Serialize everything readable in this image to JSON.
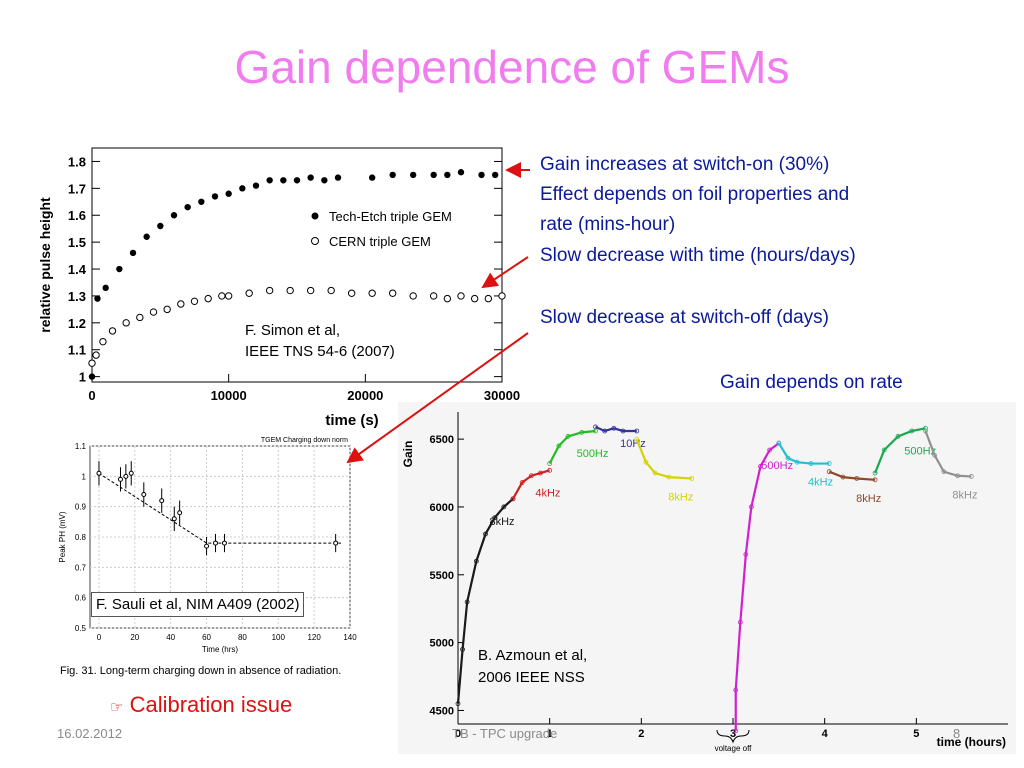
{
  "slide": {
    "title": "Gain dependence of GEMs",
    "bullets": [
      "Gain increases at switch-on (30%)",
      "Effect depends on foil properties and",
      "rate (mins-hour)",
      "Slow decrease with time (hours/days)",
      "Slow decrease at switch-off (days)"
    ],
    "rate_label": "Gain depends on rate",
    "calibration": {
      "glyph": "☞",
      "text": "Calibration issue"
    },
    "footer": {
      "date": "16.02.2012",
      "event": "TB - TPC upgrade",
      "page": "8"
    },
    "colors": {
      "title": "#f07cf0",
      "bullets": "#0a1a99",
      "arrows": "#dd1111",
      "calibration": "#dd1111"
    }
  },
  "chart_data": [
    {
      "id": "simon",
      "type": "scatter",
      "xlabel": "time (s)",
      "ylabel": "relative pulse height",
      "xlim": [
        0,
        30000
      ],
      "ylim": [
        0.98,
        1.85
      ],
      "xticks": [
        "0",
        "10000",
        "20000",
        "30000"
      ],
      "yticks": [
        "1",
        "1.1",
        "1.2",
        "1.3",
        "1.4",
        "1.5",
        "1.6",
        "1.7",
        "1.8"
      ],
      "legend": [
        "Tech-Etch triple GEM",
        "CERN triple GEM"
      ],
      "legend_position": "right",
      "citation": [
        "F. Simon et al,",
        "IEEE TNS 54-6 (2007)"
      ],
      "series": [
        {
          "name": "Tech-Etch triple GEM",
          "marker": "filled-circle",
          "points": [
            [
              0,
              1.0
            ],
            [
              400,
              1.29
            ],
            [
              1000,
              1.33
            ],
            [
              2000,
              1.4
            ],
            [
              3000,
              1.46
            ],
            [
              4000,
              1.52
            ],
            [
              5000,
              1.56
            ],
            [
              6000,
              1.6
            ],
            [
              7000,
              1.63
            ],
            [
              8000,
              1.65
            ],
            [
              9000,
              1.67
            ],
            [
              10000,
              1.68
            ],
            [
              11000,
              1.7
            ],
            [
              12000,
              1.71
            ],
            [
              13000,
              1.73
            ],
            [
              14000,
              1.73
            ],
            [
              15000,
              1.73
            ],
            [
              16000,
              1.74
            ],
            [
              17000,
              1.73
            ],
            [
              18000,
              1.74
            ],
            [
              20500,
              1.74
            ],
            [
              22000,
              1.75
            ],
            [
              23500,
              1.75
            ],
            [
              25000,
              1.75
            ],
            [
              26000,
              1.75
            ],
            [
              27000,
              1.76
            ],
            [
              28500,
              1.75
            ],
            [
              29500,
              1.75
            ]
          ]
        },
        {
          "name": "CERN triple GEM",
          "marker": "open-circle",
          "points": [
            [
              0,
              1.05
            ],
            [
              300,
              1.08
            ],
            [
              800,
              1.13
            ],
            [
              1500,
              1.17
            ],
            [
              2500,
              1.2
            ],
            [
              3500,
              1.22
            ],
            [
              4500,
              1.24
            ],
            [
              5500,
              1.25
            ],
            [
              6500,
              1.27
            ],
            [
              7500,
              1.28
            ],
            [
              8500,
              1.29
            ],
            [
              9500,
              1.3
            ],
            [
              10000,
              1.3
            ],
            [
              11500,
              1.31
            ],
            [
              13000,
              1.32
            ],
            [
              14500,
              1.32
            ],
            [
              16000,
              1.32
            ],
            [
              17500,
              1.32
            ],
            [
              19000,
              1.31
            ],
            [
              20500,
              1.31
            ],
            [
              22000,
              1.31
            ],
            [
              23500,
              1.3
            ],
            [
              25000,
              1.3
            ],
            [
              26000,
              1.29
            ],
            [
              27000,
              1.3
            ],
            [
              28000,
              1.29
            ],
            [
              29000,
              1.29
            ],
            [
              30000,
              1.3
            ]
          ]
        }
      ]
    },
    {
      "id": "sauli",
      "type": "scatter",
      "title": "TGEM Charging down norm",
      "xlabel": "Time (hrs)",
      "ylabel": "Peak PH (mV)",
      "xlim": [
        -5,
        140
      ],
      "ylim": [
        0.5,
        1.1
      ],
      "xticks": [
        "0",
        "20",
        "40",
        "60",
        "80",
        "100",
        "120",
        "140"
      ],
      "yticks": [
        "0.5",
        "0.6",
        "0.7",
        "0.8",
        "0.9",
        "1",
        "1.1"
      ],
      "citation": "F. Sauli et al, NIM A409 (2002)",
      "caption": "Fig. 31.  Long-term charging down in absence of radiation.",
      "points": [
        [
          0,
          1.01,
          0.04
        ],
        [
          12,
          0.99,
          0.04
        ],
        [
          15,
          1.0,
          0.04
        ],
        [
          18,
          1.01,
          0.04
        ],
        [
          25,
          0.94,
          0.04
        ],
        [
          35,
          0.92,
          0.04
        ],
        [
          42,
          0.86,
          0.04
        ],
        [
          45,
          0.88,
          0.04
        ],
        [
          60,
          0.77,
          0.03
        ],
        [
          65,
          0.78,
          0.03
        ],
        [
          70,
          0.78,
          0.03
        ],
        [
          132,
          0.78,
          0.03
        ]
      ],
      "fit_dashed": [
        [
          0,
          1.01
        ],
        [
          60,
          0.78
        ],
        [
          135,
          0.78
        ]
      ]
    },
    {
      "id": "azmoun",
      "type": "line",
      "xlabel": "time (hours)",
      "ylabel": "Gain",
      "xlim": [
        0,
        6
      ],
      "ylim": [
        4400,
        6700
      ],
      "xticks": [
        "0",
        "1",
        "2",
        "3",
        "4",
        "5"
      ],
      "yticks": [
        "4500",
        "5000",
        "5500",
        "6000",
        "6500"
      ],
      "annotation": "voltage off",
      "citation": [
        "B. Azmoun et al,",
        "2006 IEEE NSS"
      ],
      "segments": [
        {
          "label": "8kHz",
          "color": "#1a1a1a",
          "points": [
            [
              0,
              4550
            ],
            [
              0.05,
              4950
            ],
            [
              0.1,
              5300
            ],
            [
              0.2,
              5600
            ],
            [
              0.3,
              5800
            ],
            [
              0.4,
              5920
            ],
            [
              0.5,
              6000
            ],
            [
              0.6,
              6060
            ]
          ]
        },
        {
          "label": "4kHz",
          "color": "#cc2222",
          "points": [
            [
              0.6,
              6060
            ],
            [
              0.7,
              6180
            ],
            [
              0.8,
              6230
            ],
            [
              0.9,
              6250
            ],
            [
              1.0,
              6270
            ]
          ]
        },
        {
          "label": "500Hz",
          "color": "#22bb22",
          "points": [
            [
              1.0,
              6320
            ],
            [
              1.1,
              6450
            ],
            [
              1.2,
              6520
            ],
            [
              1.35,
              6550
            ],
            [
              1.5,
              6560
            ]
          ]
        },
        {
          "label": "10Hz",
          "color": "#333399",
          "points": [
            [
              1.5,
              6590
            ],
            [
              1.6,
              6560
            ],
            [
              1.7,
              6580
            ],
            [
              1.8,
              6560
            ],
            [
              1.95,
              6560
            ]
          ]
        },
        {
          "label": "8kHz",
          "color": "#d4d400",
          "points": [
            [
              1.95,
              6500
            ],
            [
              2.05,
              6330
            ],
            [
              2.15,
              6250
            ],
            [
              2.3,
              6220
            ],
            [
              2.55,
              6210
            ]
          ]
        },
        {
          "label": "500Hz",
          "color": "#d020d0",
          "points": [
            [
              3.03,
              4350
            ],
            [
              3.03,
              4650
            ],
            [
              3.08,
              5150
            ],
            [
              3.14,
              5650
            ],
            [
              3.2,
              6000
            ],
            [
              3.3,
              6300
            ],
            [
              3.4,
              6420
            ],
            [
              3.5,
              6470
            ]
          ]
        },
        {
          "label": "4kHz",
          "color": "#20c0d0",
          "points": [
            [
              3.5,
              6470
            ],
            [
              3.6,
              6360
            ],
            [
              3.7,
              6330
            ],
            [
              3.85,
              6320
            ],
            [
              4.05,
              6320
            ]
          ]
        },
        {
          "label": "8kHz",
          "color": "#8b4a2a",
          "points": [
            [
              4.05,
              6260
            ],
            [
              4.2,
              6220
            ],
            [
              4.35,
              6210
            ],
            [
              4.55,
              6200
            ]
          ]
        },
        {
          "label": "500Hz",
          "color": "#1aa850",
          "points": [
            [
              4.55,
              6250
            ],
            [
              4.65,
              6420
            ],
            [
              4.8,
              6520
            ],
            [
              4.95,
              6560
            ],
            [
              5.1,
              6580
            ]
          ]
        },
        {
          "label": "8kHz",
          "color": "#909090",
          "points": [
            [
              5.1,
              6560
            ],
            [
              5.2,
              6380
            ],
            [
              5.3,
              6260
            ],
            [
              5.45,
              6230
            ],
            [
              5.6,
              6225
            ]
          ]
        }
      ]
    }
  ]
}
